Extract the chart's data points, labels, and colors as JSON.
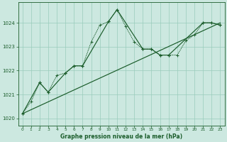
{
  "title": "Graphe pression niveau de la mer (hPa)",
  "bg_color": "#cce8e0",
  "grid_color": "#99ccbb",
  "line_color": "#1a5c2a",
  "xlim": [
    -0.5,
    23.5
  ],
  "ylim": [
    1019.7,
    1024.85
  ],
  "yticks": [
    1020,
    1021,
    1022,
    1023,
    1024
  ],
  "xticks": [
    0,
    1,
    2,
    3,
    4,
    5,
    6,
    7,
    8,
    9,
    10,
    11,
    12,
    13,
    14,
    15,
    16,
    17,
    18,
    19,
    20,
    21,
    22,
    23
  ],
  "series1_x": [
    0,
    1,
    2,
    3,
    4,
    5,
    6,
    7,
    8,
    9,
    10,
    11,
    12,
    13,
    14,
    15,
    16,
    17,
    18,
    19,
    20,
    21,
    22,
    23
  ],
  "series1_y": [
    1020.2,
    1020.7,
    1021.5,
    1021.1,
    1021.8,
    1021.9,
    1022.2,
    1022.2,
    1023.2,
    1023.9,
    1024.05,
    1024.55,
    1023.85,
    1023.2,
    1022.9,
    1022.9,
    1022.65,
    1022.65,
    1022.65,
    1023.25,
    1023.5,
    1024.0,
    1024.0,
    1023.9
  ],
  "series2_x": [
    0,
    2,
    3,
    5,
    6,
    7,
    10,
    11,
    14,
    15,
    16,
    17,
    21,
    22,
    23
  ],
  "series2_y": [
    1020.2,
    1021.5,
    1021.1,
    1021.9,
    1022.2,
    1022.2,
    1024.05,
    1024.55,
    1022.9,
    1022.9,
    1022.65,
    1022.65,
    1024.0,
    1024.0,
    1023.9
  ],
  "series3_x": [
    0,
    23
  ],
  "series3_y": [
    1020.2,
    1024.0
  ]
}
